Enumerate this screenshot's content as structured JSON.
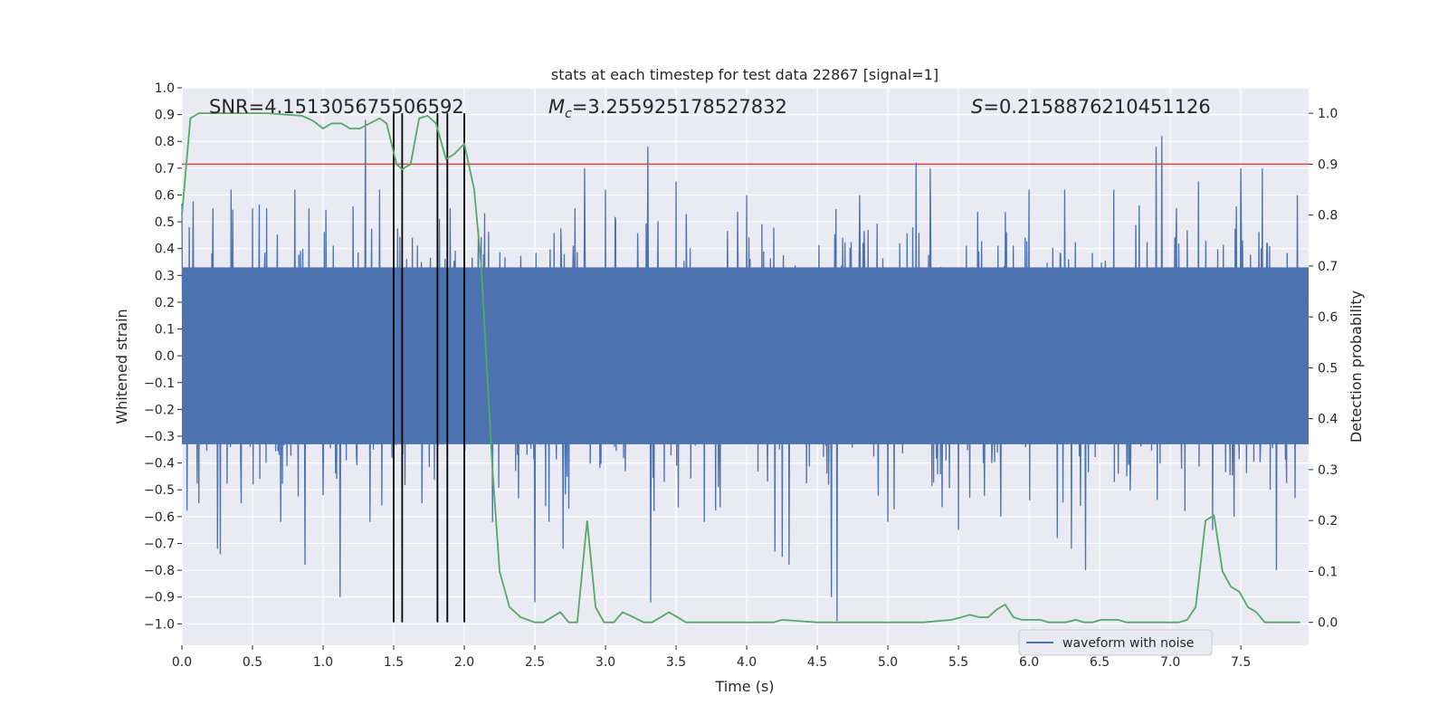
{
  "chart_data": {
    "type": "line",
    "title": "stats at each timestep for test data 22867 [signal=1]",
    "xlabel": "Time (s)",
    "ylabel": "Whitened strain",
    "y2label": "Detection probability",
    "xlim": [
      0.0,
      7.98
    ],
    "ylim": [
      -1.08,
      1.0
    ],
    "y2lim": [
      -0.045,
      1.05
    ],
    "xticks": [
      0.0,
      0.5,
      1.0,
      1.5,
      2.0,
      2.5,
      3.0,
      3.5,
      4.0,
      4.5,
      5.0,
      5.5,
      6.0,
      6.5,
      7.0,
      7.5
    ],
    "xtick_labels": [
      "0.0",
      "0.5",
      "1.0",
      "1.5",
      "2.0",
      "2.5",
      "3.0",
      "3.5",
      "4.0",
      "4.5",
      "5.0",
      "5.5",
      "6.0",
      "6.5",
      "7.0",
      "7.5"
    ],
    "yticks": [
      1.0,
      0.9,
      0.8,
      0.7,
      0.6,
      0.5,
      0.4,
      0.3,
      0.2,
      0.1,
      0.0,
      -0.1,
      -0.2,
      -0.3,
      -0.4,
      -0.5,
      -0.6,
      -0.7,
      -0.8,
      -0.9,
      -1.0
    ],
    "ytick_labels": [
      "1.0",
      "0.9",
      "0.8",
      "0.7",
      "0.6",
      "0.5",
      "0.4",
      "0.3",
      "0.2",
      "0.1",
      "0.0",
      "−0.1",
      "−0.2",
      "−0.3",
      "−0.4",
      "−0.5",
      "−0.6",
      "−0.7",
      "−0.8",
      "−0.9",
      "−1.0"
    ],
    "y2ticks": [
      1.0,
      0.9,
      0.8,
      0.7,
      0.6,
      0.5,
      0.4,
      0.3,
      0.2,
      0.1,
      0.0
    ],
    "y2tick_labels": [
      "1.0",
      "0.9",
      "0.8",
      "0.7",
      "0.6",
      "0.5",
      "0.4",
      "0.3",
      "0.2",
      "0.1",
      "0.0"
    ],
    "annotations": {
      "snr": "SNR=4.151305675506592",
      "mc_symbol": "M",
      "mc_sub": "c",
      "mc_value": "=3.255925178527832",
      "s_symbol": "S",
      "s_value": "=0.2158876210451126"
    },
    "threshold": {
      "axis": "y2",
      "value": 0.9,
      "color": "#c44e52"
    },
    "vertical_lines": [
      1.5,
      1.56,
      1.81,
      1.88,
      2.0
    ],
    "waveform": {
      "name": "waveform with noise",
      "color": "#4c72b0",
      "dt": 0.004,
      "seed": 22867,
      "band_half_width": 0.33,
      "spikes": [
        {
          "t": 0.05,
          "v": 0.48
        },
        {
          "t": 0.12,
          "v": -0.55
        },
        {
          "t": 0.22,
          "v": 0.55
        },
        {
          "t": 0.25,
          "v": -0.72
        },
        {
          "t": 0.27,
          "v": -0.74
        },
        {
          "t": 0.35,
          "v": 0.62
        },
        {
          "t": 0.42,
          "v": -0.55
        },
        {
          "t": 0.5,
          "v": 0.55
        },
        {
          "t": 0.6,
          "v": 0.55
        },
        {
          "t": 0.7,
          "v": -0.62
        },
        {
          "t": 0.8,
          "v": 0.62
        },
        {
          "t": 0.87,
          "v": -0.78
        },
        {
          "t": 0.9,
          "v": 0.55
        },
        {
          "t": 1.0,
          "v": -0.52
        },
        {
          "t": 1.12,
          "v": -0.9
        },
        {
          "t": 1.3,
          "v": 0.88
        },
        {
          "t": 1.33,
          "v": -0.62
        },
        {
          "t": 1.4,
          "v": 0.62
        },
        {
          "t": 1.7,
          "v": -0.55
        },
        {
          "t": 1.9,
          "v": 0.55
        },
        {
          "t": 2.2,
          "v": -0.62
        },
        {
          "t": 2.5,
          "v": -0.92
        },
        {
          "t": 2.6,
          "v": -0.62
        },
        {
          "t": 2.7,
          "v": -0.72
        },
        {
          "t": 2.85,
          "v": 0.7
        },
        {
          "t": 3.0,
          "v": 0.62
        },
        {
          "t": 3.3,
          "v": 0.78
        },
        {
          "t": 3.32,
          "v": -0.92
        },
        {
          "t": 3.5,
          "v": 0.65
        },
        {
          "t": 3.7,
          "v": -0.62
        },
        {
          "t": 4.0,
          "v": 0.6
        },
        {
          "t": 4.2,
          "v": -0.73
        },
        {
          "t": 4.25,
          "v": -0.75
        },
        {
          "t": 4.3,
          "v": -0.78
        },
        {
          "t": 4.6,
          "v": -0.9
        },
        {
          "t": 4.64,
          "v": -0.99
        },
        {
          "t": 4.8,
          "v": 0.6
        },
        {
          "t": 5.0,
          "v": -0.62
        },
        {
          "t": 5.2,
          "v": 0.72
        },
        {
          "t": 5.3,
          "v": 0.7
        },
        {
          "t": 5.5,
          "v": -0.65
        },
        {
          "t": 5.8,
          "v": -0.6
        },
        {
          "t": 6.0,
          "v": 0.62
        },
        {
          "t": 6.2,
          "v": -0.68
        },
        {
          "t": 6.25,
          "v": 0.62
        },
        {
          "t": 6.3,
          "v": -0.72
        },
        {
          "t": 6.4,
          "v": -0.8
        },
        {
          "t": 6.6,
          "v": 0.62
        },
        {
          "t": 6.9,
          "v": 0.78
        },
        {
          "t": 6.94,
          "v": 0.82
        },
        {
          "t": 7.2,
          "v": 0.65
        },
        {
          "t": 7.3,
          "v": -0.65
        },
        {
          "t": 7.45,
          "v": -0.6
        },
        {
          "t": 7.5,
          "v": 0.7
        },
        {
          "t": 7.65,
          "v": 0.7
        },
        {
          "t": 7.75,
          "v": -0.8
        },
        {
          "t": 7.9,
          "v": 0.6
        }
      ]
    },
    "probability": {
      "name": "Detection probability",
      "color": "#55a868",
      "t": [
        0.0,
        0.06,
        0.12,
        0.2,
        0.4,
        0.6,
        0.85,
        0.93,
        1.0,
        1.06,
        1.13,
        1.19,
        1.26,
        1.33,
        1.4,
        1.45,
        1.52,
        1.56,
        1.62,
        1.68,
        1.74,
        1.8,
        1.87,
        1.93,
        2.0,
        2.07,
        2.12,
        2.16,
        2.2,
        2.25,
        2.32,
        2.4,
        2.5,
        2.56,
        2.62,
        2.68,
        2.74,
        2.8,
        2.87,
        2.93,
        2.99,
        3.06,
        3.12,
        3.2,
        3.27,
        3.33,
        3.39,
        3.45,
        3.51,
        3.57,
        3.63,
        3.7,
        3.76,
        3.82,
        3.88,
        3.94,
        4.0,
        4.06,
        4.12,
        4.19,
        4.25,
        4.5,
        4.75,
        5.0,
        5.25,
        5.45,
        5.52,
        5.58,
        5.65,
        5.71,
        5.77,
        5.83,
        5.89,
        5.95,
        6.02,
        6.08,
        6.14,
        6.2,
        6.26,
        6.33,
        6.39,
        6.45,
        6.51,
        6.57,
        6.63,
        6.69,
        6.75,
        6.82,
        6.88,
        6.94,
        7.0,
        7.06,
        7.12,
        7.18,
        7.25,
        7.31,
        7.37,
        7.43,
        7.49,
        7.55,
        7.61,
        7.67,
        7.73,
        7.79,
        7.85,
        7.92
      ],
      "p": [
        0.8,
        0.99,
        1.0,
        1.0,
        1.0,
        1.0,
        0.995,
        0.985,
        0.97,
        0.98,
        0.98,
        0.97,
        0.97,
        0.98,
        0.99,
        0.98,
        0.9,
        0.89,
        0.9,
        0.99,
        0.995,
        0.98,
        0.91,
        0.92,
        0.94,
        0.85,
        0.7,
        0.5,
        0.3,
        0.1,
        0.03,
        0.01,
        0.0,
        0.0,
        0.01,
        0.02,
        0.0,
        0.0,
        0.2,
        0.03,
        0.0,
        0.0,
        0.02,
        0.01,
        0.0,
        0.0,
        0.01,
        0.02,
        0.01,
        0.0,
        0.0,
        0.0,
        0.0,
        0.0,
        0.0,
        0.0,
        0.0,
        0.0,
        0.0,
        0.0,
        0.005,
        0.0,
        0.0,
        0.0,
        0.0,
        0.005,
        0.01,
        0.015,
        0.01,
        0.01,
        0.025,
        0.035,
        0.01,
        0.005,
        0.005,
        0.005,
        0.0,
        0.0,
        0.0,
        0.005,
        0.0,
        0.0,
        0.005,
        0.005,
        0.005,
        0.0,
        0.0,
        0.0,
        0.0,
        0.0,
        0.0,
        0.0,
        0.005,
        0.03,
        0.2,
        0.21,
        0.1,
        0.07,
        0.06,
        0.03,
        0.02,
        0.0,
        0.0,
        0.0,
        0.0,
        0.0
      ]
    },
    "legend": {
      "position": "bottom-right",
      "entries": [
        "waveform with noise"
      ]
    }
  }
}
